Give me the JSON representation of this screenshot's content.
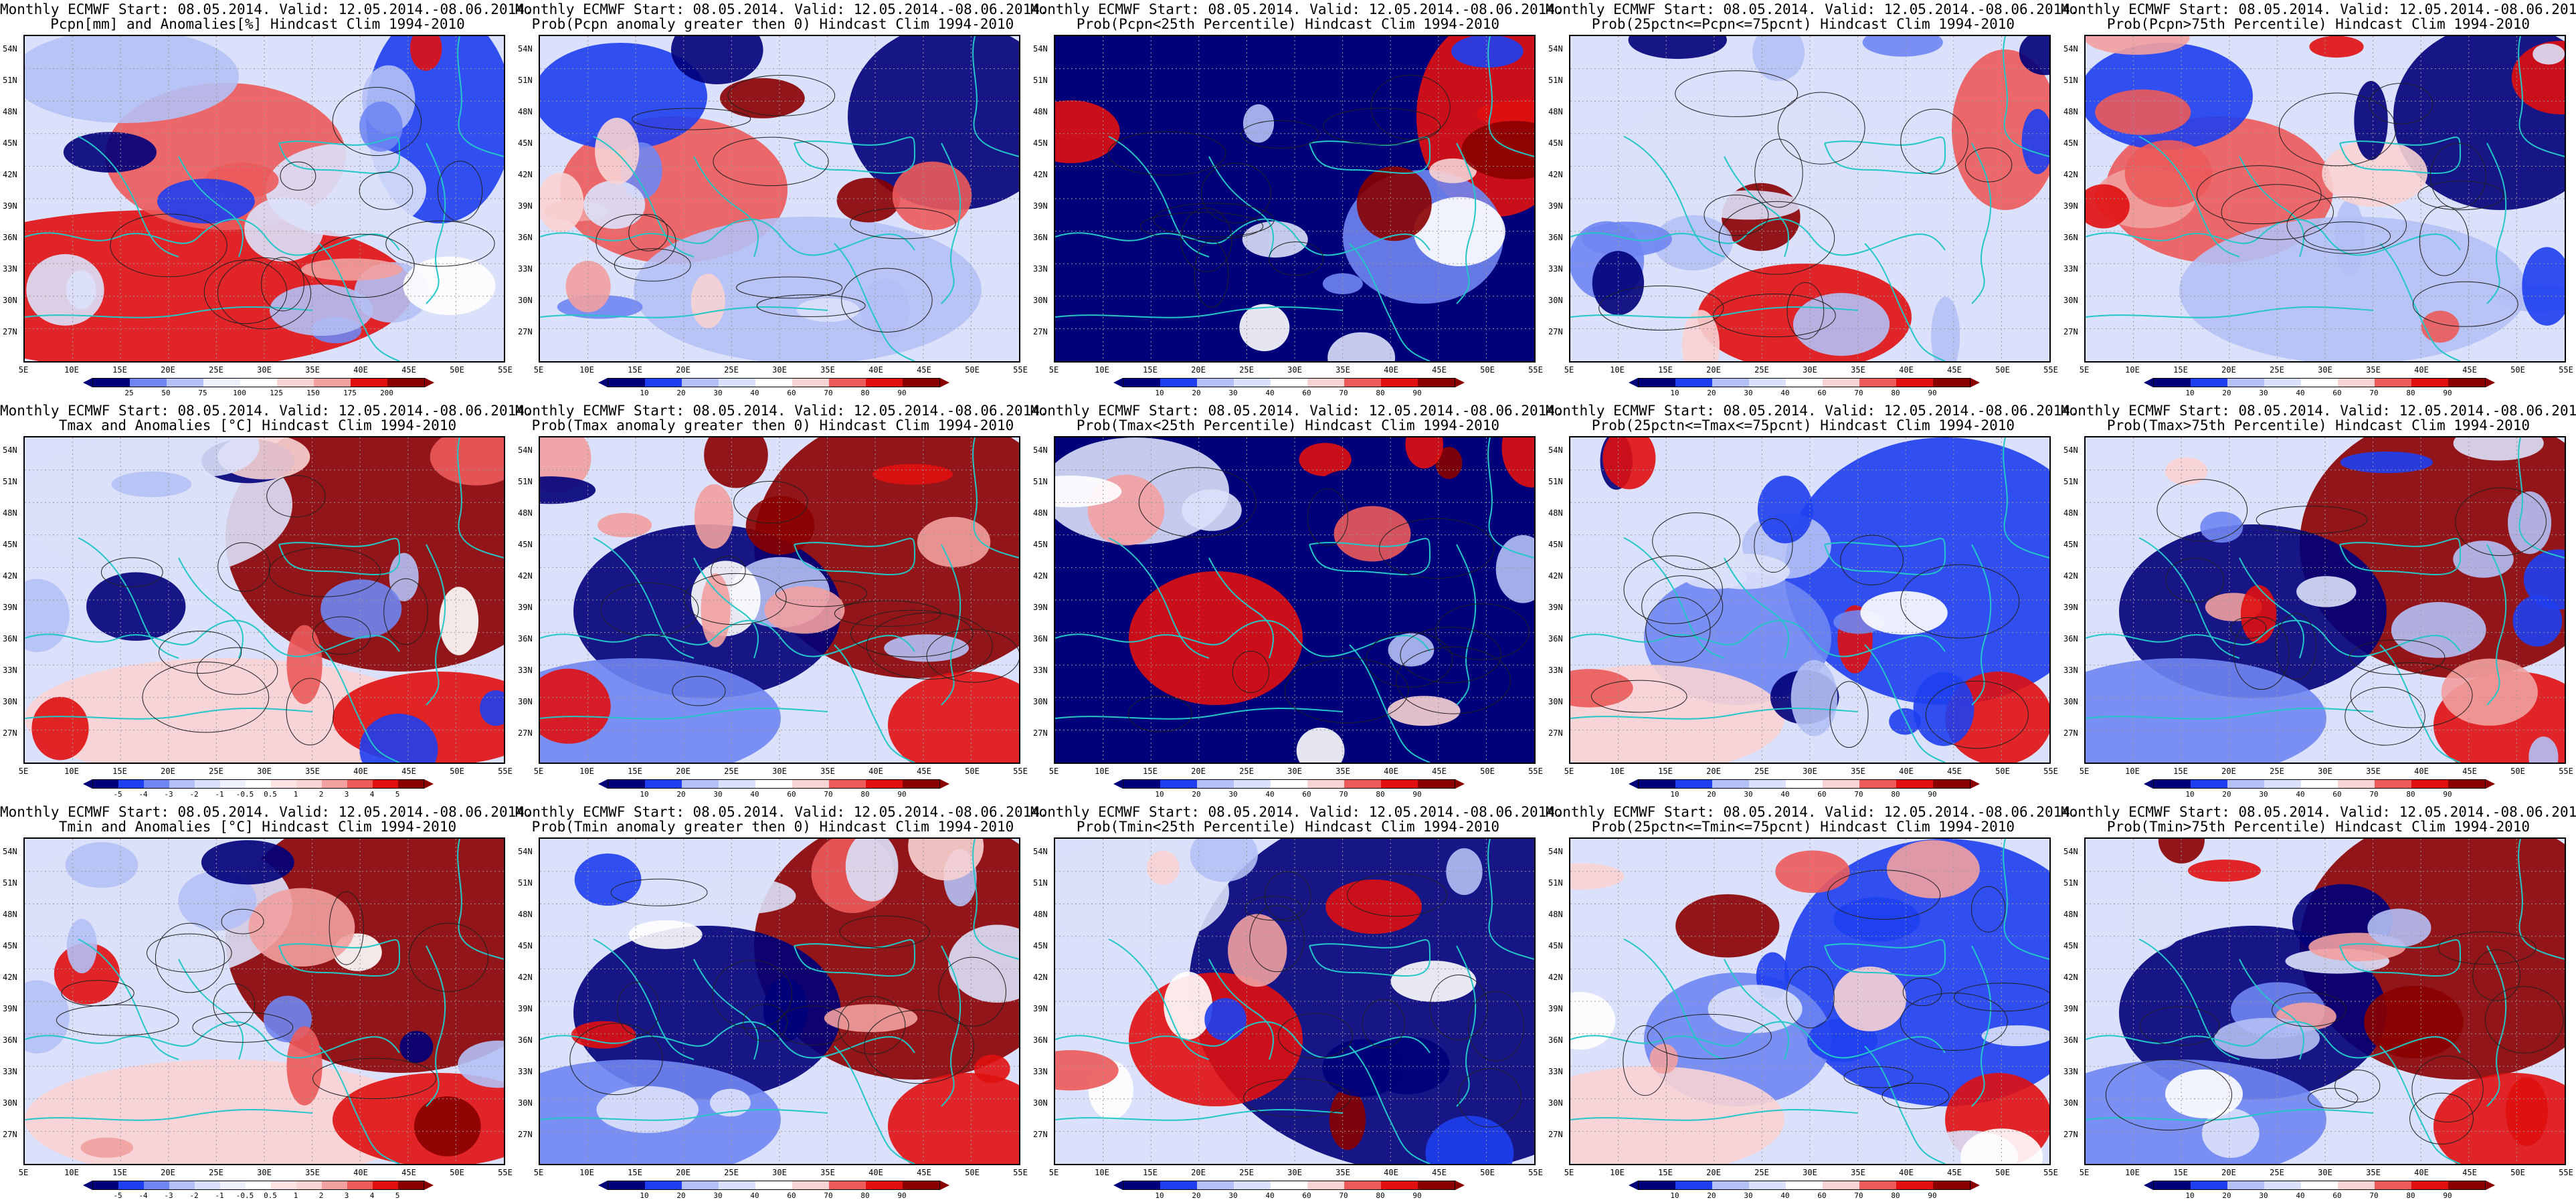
{
  "colors": {
    "deep_blue": "#00007a",
    "blue": "#1e3ff0",
    "mid_blue": "#6f86f2",
    "light_blue": "#b4c0f5",
    "pale_blue": "#dbe1fa",
    "white": "#ffffff",
    "pale_red": "#f8d3d3",
    "light_red": "#f2a0a0",
    "mid_red": "#ec5a5a",
    "red": "#e01010",
    "deep_red": "#8a0000",
    "coast": "#23c7c7",
    "contour": "#202020"
  },
  "axes": {
    "y_ticks": [
      "54N",
      "51N",
      "48N",
      "45N",
      "42N",
      "39N",
      "36N",
      "33N",
      "30N",
      "27N"
    ],
    "x_ticks": [
      "5E",
      "10E",
      "15E",
      "20E",
      "25E",
      "30E",
      "35E",
      "40E",
      "45E",
      "50E",
      "55E"
    ]
  },
  "title_line1": "Monthly ECMWF Start: 08.05.2014. Valid: 12.05.2014.-08.06.2014.",
  "panels": [
    {
      "subtitle": "Pcpn[mm] and Anomalies[%] Hindcast Clim 1994-2010",
      "field": "anom_pcpn",
      "cbar_labels": [
        "25",
        "50",
        "75",
        "100",
        "125",
        "150",
        "175",
        "200"
      ],
      "cbar_kind": "pcpn"
    },
    {
      "subtitle": "Prob(Pcpn anomaly greater then 0) Hindcast Clim 1994-2010",
      "field": "prob_pcpn_pos",
      "cbar_labels": [
        "10",
        "20",
        "30",
        "40",
        "60",
        "70",
        "80",
        "90"
      ],
      "cbar_kind": "prob"
    },
    {
      "subtitle": "Prob(Pcpn<25th Percentile) Hindcast Clim 1994-2010",
      "field": "prob_pcpn_low",
      "cbar_labels": [
        "10",
        "20",
        "30",
        "40",
        "60",
        "70",
        "80",
        "90"
      ],
      "cbar_kind": "prob"
    },
    {
      "subtitle": "Prob(25pctn<=Pcpn<=75pcnt) Hindcast Clim 1994-2010",
      "field": "prob_pcpn_mid",
      "cbar_labels": [
        "10",
        "20",
        "30",
        "40",
        "60",
        "70",
        "80",
        "90"
      ],
      "cbar_kind": "prob"
    },
    {
      "subtitle": "Prob(Pcpn>75th Percentile) Hindcast Clim 1994-2010",
      "field": "prob_pcpn_high",
      "cbar_labels": [
        "10",
        "20",
        "30",
        "40",
        "60",
        "70",
        "80",
        "90"
      ],
      "cbar_kind": "prob"
    },
    {
      "subtitle": "Tmax and Anomalies [°C] Hindcast Clim 1994-2010",
      "field": "anom_tmax",
      "cbar_labels": [
        "-5",
        "-4",
        "-3",
        "-2",
        "-1",
        "-0.5",
        "0.5",
        "1",
        "2",
        "3",
        "4",
        "5"
      ],
      "cbar_kind": "temp"
    },
    {
      "subtitle": "Prob(Tmax anomaly greater then 0) Hindcast Clim 1994-2010",
      "field": "prob_tmax_pos",
      "cbar_labels": [
        "10",
        "20",
        "30",
        "40",
        "60",
        "70",
        "80",
        "90"
      ],
      "cbar_kind": "prob"
    },
    {
      "subtitle": "Prob(Tmax<25th Percentile) Hindcast Clim 1994-2010",
      "field": "prob_tmax_low",
      "cbar_labels": [
        "10",
        "20",
        "30",
        "40",
        "60",
        "70",
        "80",
        "90"
      ],
      "cbar_kind": "prob"
    },
    {
      "subtitle": "Prob(25pctn<=Tmax<=75pcnt) Hindcast Clim 1994-2010",
      "field": "prob_tmax_mid",
      "cbar_labels": [
        "10",
        "20",
        "30",
        "40",
        "60",
        "70",
        "80",
        "90"
      ],
      "cbar_kind": "prob"
    },
    {
      "subtitle": "Prob(Tmax>75th Percentile) Hindcast Clim 1994-2010",
      "field": "prob_tmax_high",
      "cbar_labels": [
        "10",
        "20",
        "30",
        "40",
        "60",
        "70",
        "80",
        "90"
      ],
      "cbar_kind": "prob"
    },
    {
      "subtitle": "Tmin and Anomalies [°C] Hindcast Clim 1994-2010",
      "field": "anom_tmin",
      "cbar_labels": [
        "-5",
        "-4",
        "-3",
        "-2",
        "-1",
        "-0.5",
        "0.5",
        "1",
        "2",
        "3",
        "4",
        "5"
      ],
      "cbar_kind": "temp"
    },
    {
      "subtitle": "Prob(Tmin anomaly greater then 0) Hindcast Clim 1994-2010",
      "field": "prob_tmin_pos",
      "cbar_labels": [
        "10",
        "20",
        "30",
        "40",
        "60",
        "70",
        "80",
        "90"
      ],
      "cbar_kind": "prob"
    },
    {
      "subtitle": "Prob(Tmin<25th Percentile) Hindcast Clim 1994-2010",
      "field": "prob_tmin_low",
      "cbar_labels": [
        "10",
        "20",
        "30",
        "40",
        "60",
        "70",
        "80",
        "90"
      ],
      "cbar_kind": "prob"
    },
    {
      "subtitle": "Prob(25pctn<=Tmin<=75pcnt) Hindcast Clim 1994-2010",
      "field": "prob_tmin_mid",
      "cbar_labels": [
        "10",
        "20",
        "30",
        "40",
        "60",
        "70",
        "80",
        "90"
      ],
      "cbar_kind": "prob"
    },
    {
      "subtitle": "Prob(Tmin>75th Percentile) Hindcast Clim 1994-2010",
      "field": "prob_tmin_high",
      "cbar_labels": [
        "10",
        "20",
        "30",
        "40",
        "60",
        "70",
        "80",
        "90"
      ],
      "cbar_kind": "prob"
    }
  ]
}
